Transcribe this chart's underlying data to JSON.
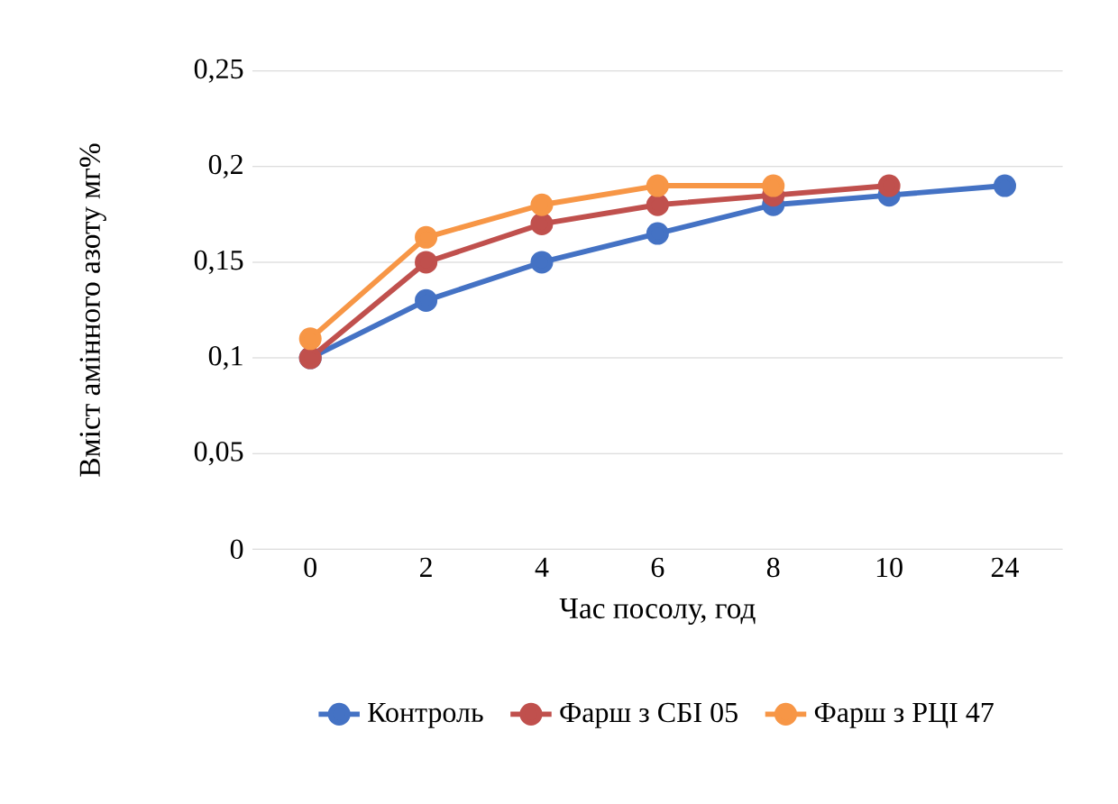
{
  "chart_data": {
    "type": "line",
    "xlabel": "Час посолу, год",
    "ylabel": "Вміст амінного азоту мг%",
    "categories": [
      "0",
      "2",
      "4",
      "6",
      "8",
      "10",
      "24"
    ],
    "series": [
      {
        "name": "Контроль",
        "color": "#4472c4",
        "values": [
          0.1,
          0.13,
          0.15,
          0.165,
          0.18,
          0.185,
          0.19
        ]
      },
      {
        "name": "Фарш з СБІ 05",
        "color": "#c0504d",
        "values": [
          0.1,
          0.15,
          0.17,
          0.18,
          0.185,
          0.19,
          null
        ]
      },
      {
        "name": "Фарш з РЦІ 47",
        "color": "#f79646",
        "values": [
          0.11,
          0.163,
          0.18,
          0.19,
          0.19,
          null,
          null
        ]
      }
    ],
    "ylim": [
      0,
      0.25
    ],
    "yticks": [
      {
        "value": 0,
        "label": "0"
      },
      {
        "value": 0.05,
        "label": "0,05"
      },
      {
        "value": 0.1,
        "label": "0,1"
      },
      {
        "value": 0.15,
        "label": "0,15"
      },
      {
        "value": 0.2,
        "label": "0,2"
      },
      {
        "value": 0.25,
        "label": "0,25"
      }
    ],
    "grid": "y",
    "legend": "bottom",
    "marker": "circle",
    "line_style": "solid"
  }
}
